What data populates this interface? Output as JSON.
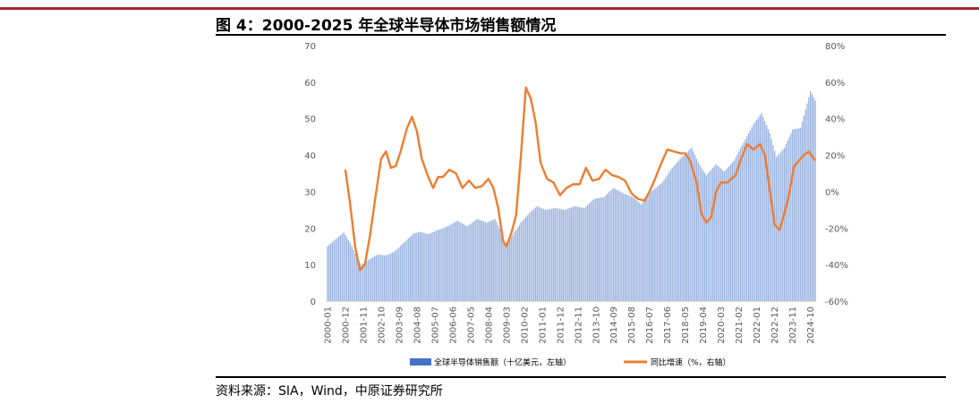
{
  "header": {
    "title": "图 4：2000-2025 年全球半导体市场销售额情况"
  },
  "footer": {
    "source": "资料来源：SIA，Wind，中原证券研究所"
  },
  "colors": {
    "accent_line": "#A6272D",
    "bar": "#4472C4",
    "line": "#ED7D31"
  },
  "chart_data": {
    "type": "bar",
    "legend_position": "bottom",
    "grid": false,
    "y_left": {
      "ylim": [
        0,
        70
      ],
      "ticks": [
        "0",
        "10",
        "20",
        "30",
        "40",
        "50",
        "60",
        "70"
      ]
    },
    "y_right": {
      "ylim": [
        -60,
        80
      ],
      "ticks": [
        "-60%",
        "-40%",
        "-20%",
        "0%",
        "20%",
        "40%",
        "60%",
        "80%"
      ]
    },
    "x_range": [
      "2000-01",
      "2025-01"
    ],
    "x_tick_labels": [
      "2000-01",
      "2000-12",
      "2001-11",
      "2002-10",
      "2003-09",
      "2004-08",
      "2005-07",
      "2006-06",
      "2007-05",
      "2008-04",
      "2009-03",
      "2010-02",
      "2011-01",
      "2011-12",
      "2012-11",
      "2013-10",
      "2014-09",
      "2015-08",
      "2016-07",
      "2017-06",
      "2018-05",
      "2019-04",
      "2020-03",
      "2021-02",
      "2022-01",
      "2022-12",
      "2023-11",
      "2024-10"
    ],
    "series": [
      {
        "name": "全球半导体销售额（十亿美元，左轴）",
        "type": "bar",
        "axis": "left",
        "points": [
          [
            "2000-01",
            15
          ],
          [
            "2000-06",
            17
          ],
          [
            "2000-11",
            18.8
          ],
          [
            "2001-03",
            16
          ],
          [
            "2001-08",
            11
          ],
          [
            "2001-10",
            10
          ],
          [
            "2002-02",
            11.2
          ],
          [
            "2002-08",
            12.8
          ],
          [
            "2003-01",
            12.5
          ],
          [
            "2003-06",
            13.5
          ],
          [
            "2003-12",
            16
          ],
          [
            "2004-06",
            18.5
          ],
          [
            "2004-10",
            19
          ],
          [
            "2005-03",
            18.3
          ],
          [
            "2005-09",
            19.5
          ],
          [
            "2006-03",
            20.5
          ],
          [
            "2006-09",
            22
          ],
          [
            "2007-03",
            20.5
          ],
          [
            "2007-09",
            22.5
          ],
          [
            "2008-03",
            21.5
          ],
          [
            "2008-08",
            22.5
          ],
          [
            "2008-12",
            19
          ],
          [
            "2009-02",
            15.5
          ],
          [
            "2009-06",
            17.5
          ],
          [
            "2009-12",
            21.5
          ],
          [
            "2010-06",
            24.5
          ],
          [
            "2010-10",
            26
          ],
          [
            "2011-03",
            25
          ],
          [
            "2011-09",
            25.5
          ],
          [
            "2012-03",
            25
          ],
          [
            "2012-09",
            26
          ],
          [
            "2013-03",
            25.5
          ],
          [
            "2013-09",
            28
          ],
          [
            "2014-03",
            28.5
          ],
          [
            "2014-09",
            31
          ],
          [
            "2015-03",
            29.5
          ],
          [
            "2015-09",
            28.5
          ],
          [
            "2016-02",
            26.5
          ],
          [
            "2016-08",
            30
          ],
          [
            "2017-03",
            32.5
          ],
          [
            "2017-09",
            36.5
          ],
          [
            "2018-03",
            39.5
          ],
          [
            "2018-09",
            42
          ],
          [
            "2019-01",
            38
          ],
          [
            "2019-06",
            34.5
          ],
          [
            "2019-12",
            37.5
          ],
          [
            "2020-05",
            35.5
          ],
          [
            "2020-11",
            38.5
          ],
          [
            "2021-05",
            43.5
          ],
          [
            "2021-11",
            48.5
          ],
          [
            "2022-04",
            51.5
          ],
          [
            "2022-09",
            46
          ],
          [
            "2023-01",
            39.5
          ],
          [
            "2023-06",
            42
          ],
          [
            "2023-11",
            47
          ],
          [
            "2024-04",
            47.5
          ],
          [
            "2024-10",
            57.5
          ],
          [
            "2025-01",
            55
          ]
        ]
      },
      {
        "name": "同比增速（%，右轴）",
        "type": "line",
        "axis": "right",
        "points": [
          [
            "2000-12",
            12
          ],
          [
            "2001-03",
            -7
          ],
          [
            "2001-06",
            -30
          ],
          [
            "2001-09",
            -43
          ],
          [
            "2001-12",
            -40
          ],
          [
            "2002-03",
            -25
          ],
          [
            "2002-07",
            0
          ],
          [
            "2002-10",
            18
          ],
          [
            "2003-01",
            22
          ],
          [
            "2003-04",
            13
          ],
          [
            "2003-07",
            14
          ],
          [
            "2003-10",
            22
          ],
          [
            "2004-02",
            35
          ],
          [
            "2004-05",
            41
          ],
          [
            "2004-08",
            33
          ],
          [
            "2004-11",
            18
          ],
          [
            "2005-03",
            8
          ],
          [
            "2005-06",
            2
          ],
          [
            "2005-09",
            8
          ],
          [
            "2005-12",
            8
          ],
          [
            "2006-04",
            12
          ],
          [
            "2006-08",
            10
          ],
          [
            "2006-12",
            2
          ],
          [
            "2007-04",
            6
          ],
          [
            "2007-08",
            2
          ],
          [
            "2007-12",
            3
          ],
          [
            "2008-04",
            7
          ],
          [
            "2008-07",
            2
          ],
          [
            "2008-10",
            -9
          ],
          [
            "2009-01",
            -27
          ],
          [
            "2009-03",
            -30
          ],
          [
            "2009-06",
            -23
          ],
          [
            "2009-09",
            -13
          ],
          [
            "2009-12",
            20
          ],
          [
            "2010-03",
            57
          ],
          [
            "2010-06",
            51
          ],
          [
            "2010-09",
            38
          ],
          [
            "2010-12",
            16
          ],
          [
            "2011-04",
            7
          ],
          [
            "2011-08",
            5
          ],
          [
            "2011-12",
            -2
          ],
          [
            "2012-04",
            2
          ],
          [
            "2012-08",
            4
          ],
          [
            "2012-12",
            4
          ],
          [
            "2013-04",
            13
          ],
          [
            "2013-08",
            6
          ],
          [
            "2013-12",
            7
          ],
          [
            "2014-04",
            12
          ],
          [
            "2014-08",
            9
          ],
          [
            "2014-12",
            8
          ],
          [
            "2015-04",
            6
          ],
          [
            "2015-08",
            -1
          ],
          [
            "2015-12",
            -4
          ],
          [
            "2016-04",
            -5
          ],
          [
            "2016-07",
            0
          ],
          [
            "2016-10",
            6
          ],
          [
            "2017-02",
            15
          ],
          [
            "2017-06",
            23
          ],
          [
            "2017-10",
            22
          ],
          [
            "2018-02",
            21
          ],
          [
            "2018-05",
            21
          ],
          [
            "2018-08",
            17
          ],
          [
            "2018-12",
            5
          ],
          [
            "2019-03",
            -12
          ],
          [
            "2019-06",
            -17
          ],
          [
            "2019-09",
            -14
          ],
          [
            "2019-12",
            0
          ],
          [
            "2020-03",
            5
          ],
          [
            "2020-07",
            5
          ],
          [
            "2020-12",
            9
          ],
          [
            "2021-03",
            17
          ],
          [
            "2021-07",
            26
          ],
          [
            "2021-11",
            23
          ],
          [
            "2022-03",
            26
          ],
          [
            "2022-06",
            20
          ],
          [
            "2022-09",
            1
          ],
          [
            "2022-12",
            -18
          ],
          [
            "2023-03",
            -21
          ],
          [
            "2023-06",
            -12
          ],
          [
            "2023-09",
            -1
          ],
          [
            "2023-12",
            14
          ],
          [
            "2024-03",
            17
          ],
          [
            "2024-06",
            20
          ],
          [
            "2024-09",
            22
          ],
          [
            "2024-12",
            18
          ],
          [
            "2025-01",
            17
          ]
        ]
      }
    ]
  }
}
